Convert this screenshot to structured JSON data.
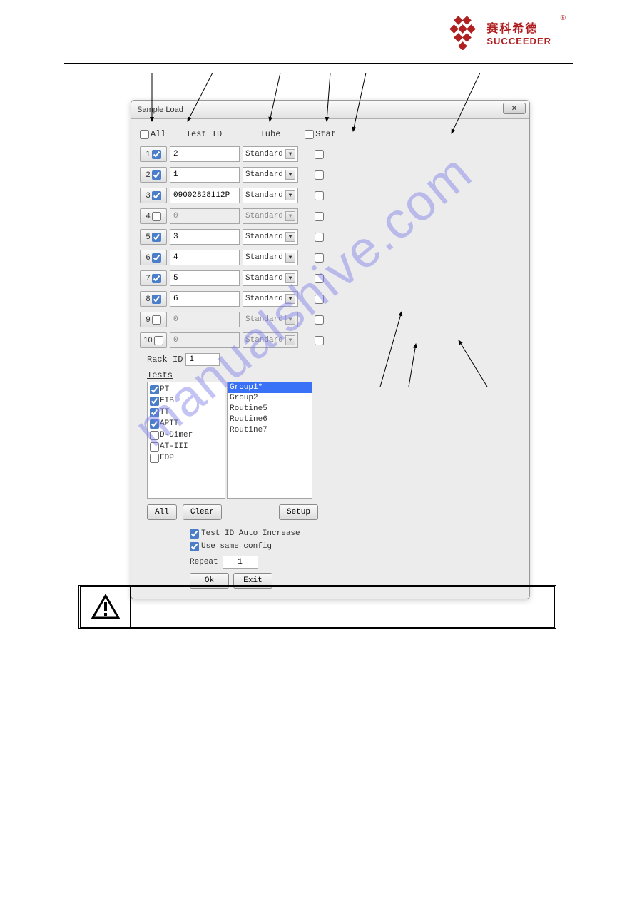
{
  "logo": {
    "cn": "赛科希德",
    "en": "SUCCEEDER"
  },
  "dialog": {
    "title": "Sample Load",
    "headers": {
      "all": "All",
      "test_id": "Test ID",
      "tube": "Tube",
      "stat": "Stat"
    },
    "rows": [
      {
        "num": "1",
        "checked": true,
        "test_id": "2",
        "tube": "Standard",
        "enabled": true,
        "stat": false
      },
      {
        "num": "2",
        "checked": true,
        "test_id": "1",
        "tube": "Standard",
        "enabled": true,
        "stat": false
      },
      {
        "num": "3",
        "checked": true,
        "test_id": "09002828112P",
        "tube": "Standard",
        "enabled": true,
        "stat": false
      },
      {
        "num": "4",
        "checked": false,
        "test_id": "0",
        "tube": "Standard",
        "enabled": false,
        "stat": false
      },
      {
        "num": "5",
        "checked": true,
        "test_id": "3",
        "tube": "Standard",
        "enabled": true,
        "stat": false
      },
      {
        "num": "6",
        "checked": true,
        "test_id": "4",
        "tube": "Standard",
        "enabled": true,
        "stat": false
      },
      {
        "num": "7",
        "checked": true,
        "test_id": "5",
        "tube": "Standard",
        "enabled": true,
        "stat": false
      },
      {
        "num": "8",
        "checked": true,
        "test_id": "6",
        "tube": "Standard",
        "enabled": true,
        "stat": false
      },
      {
        "num": "9",
        "checked": false,
        "test_id": "0",
        "tube": "Standard",
        "enabled": false,
        "stat": false
      },
      {
        "num": "10",
        "checked": false,
        "test_id": "0",
        "tube": "Standard",
        "enabled": false,
        "stat": false
      }
    ],
    "rack_id_label": "Rack ID",
    "rack_id_value": "1",
    "tests_label": "Tests",
    "tests": [
      {
        "name": "PT",
        "checked": true
      },
      {
        "name": "FIB",
        "checked": true
      },
      {
        "name": "TT",
        "checked": true
      },
      {
        "name": "APTT",
        "checked": true
      },
      {
        "name": "D-Dimer",
        "checked": false
      },
      {
        "name": "AT-III",
        "checked": false
      },
      {
        "name": "FDP",
        "checked": false
      }
    ],
    "groups": [
      {
        "label": "Group1*",
        "selected": true
      },
      {
        "label": "Group2",
        "selected": false
      },
      {
        "label": "Routine5",
        "selected": false
      },
      {
        "label": "Routine6",
        "selected": false
      },
      {
        "label": "Routine7",
        "selected": false
      }
    ],
    "buttons": {
      "all": "All",
      "clear": "Clear",
      "setup": "Setup",
      "ok": "Ok",
      "exit": "Exit"
    },
    "options": {
      "auto_increase_label": "Test ID Auto Increase",
      "auto_increase_checked": true,
      "same_config_label": "Use same config",
      "same_config_checked": true,
      "repeat_label": "Repeat",
      "repeat_value": "1"
    }
  },
  "watermark": "manualshive.com",
  "colors": {
    "dialog_bg": "#ececec",
    "selected_bg": "#3a72f7",
    "logo_red": "#b02020",
    "watermark_color": "#7e7ee8"
  }
}
